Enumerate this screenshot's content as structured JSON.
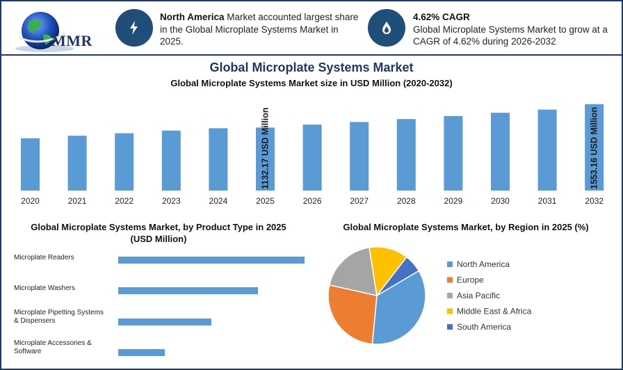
{
  "header": {
    "logo_text": "MMR",
    "info1": {
      "bold": "North America",
      "text": " Market accounted largest share in the Global Microplate Systems Market in 2025."
    },
    "info2": {
      "bold": "4.62% CAGR",
      "text": "Global Microplate Systems Market to grow at a CAGR of 4.62% during 2026-2032"
    },
    "icons": [
      "lightning-icon",
      "flame-drop-icon"
    ]
  },
  "main_title": "Global Microplate Systems Market",
  "colors": {
    "bar": "#5b9bd5",
    "navy": "#1f4e79",
    "title": "#1f3864"
  },
  "chart_data": [
    {
      "type": "bar",
      "title": "Global Microplate Systems Market size in USD Million (2020-2032)",
      "categories": [
        "2020",
        "2021",
        "2022",
        "2023",
        "2024",
        "2025",
        "2026",
        "2027",
        "2028",
        "2029",
        "2030",
        "2031",
        "2032"
      ],
      "values": [
        940,
        985,
        1030,
        1078,
        1120,
        1132.17,
        1185,
        1232,
        1285,
        1340,
        1398,
        1455,
        1553.16
      ],
      "data_labels": {
        "2025": "1132.17 USD Million",
        "2032": "1553.16 USD Million"
      },
      "ylim": [
        0,
        1650
      ]
    },
    {
      "type": "bar",
      "orientation": "horizontal",
      "title": "Global Microplate Systems Market, by Product Type in 2025 (USD Million)",
      "categories": [
        "Microplate Readers",
        "Microplate Washers",
        "Microplate Pipetting Systems & Dispensers",
        "Microplate Accessories & Software"
      ],
      "values": [
        100,
        75,
        50,
        25
      ]
    },
    {
      "type": "pie",
      "title": "Global Microplate Systems Market, by Region in 2025 (%)",
      "legend": "right",
      "slices": [
        {
          "name": "North America",
          "value": 35,
          "color": "#5b9bd5"
        },
        {
          "name": "Europe",
          "value": 27,
          "color": "#ed7d31"
        },
        {
          "name": "Asia Pacific",
          "value": 19,
          "color": "#a5a5a5"
        },
        {
          "name": "Middle East & Africa",
          "value": 13,
          "color": "#ffc000"
        },
        {
          "name": "South America",
          "value": 6,
          "color": "#4472c4"
        }
      ]
    }
  ]
}
